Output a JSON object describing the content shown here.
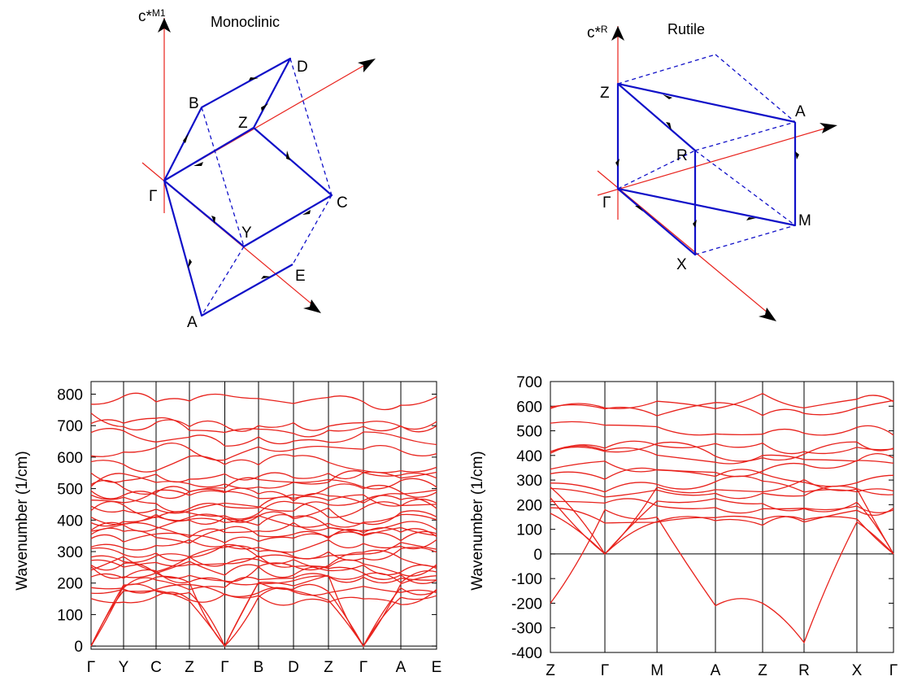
{
  "diagrams": [
    {
      "title": "Monoclinic",
      "axis_label": "c*M1",
      "points": [
        "Γ",
        "B",
        "D",
        "Z",
        "C",
        "Y",
        "E",
        "A"
      ]
    },
    {
      "title": "Rutile",
      "axis_label": "c*R",
      "points": [
        "Z",
        "A",
        "R",
        "Γ",
        "M",
        "X"
      ]
    }
  ],
  "chart_data": [
    {
      "type": "line",
      "ylabel": "Wavenumber (1/cm)",
      "ylim": [
        -10,
        840
      ],
      "yticks": [
        0,
        100,
        200,
        300,
        400,
        500,
        600,
        700,
        800
      ],
      "x_path": [
        "Γ",
        "Y",
        "C",
        "Z",
        "Γ",
        "B",
        "D",
        "Z",
        "Γ",
        "A",
        "E"
      ],
      "grid": "vertical lines at high-symmetry points",
      "color": "#e8221c"
    },
    {
      "type": "line",
      "ylabel": "Wavenumber (1/cm)",
      "ylim": [
        -400,
        700
      ],
      "yticks": [
        -400,
        -300,
        -200,
        -100,
        0,
        100,
        200,
        300,
        400,
        500,
        600,
        700
      ],
      "x_path": [
        "Z",
        "Γ",
        "M",
        "A",
        "Z",
        "R",
        "X",
        "Γ"
      ],
      "grid": "vertical lines at high-symmetry points",
      "color": "#e8221c"
    }
  ]
}
